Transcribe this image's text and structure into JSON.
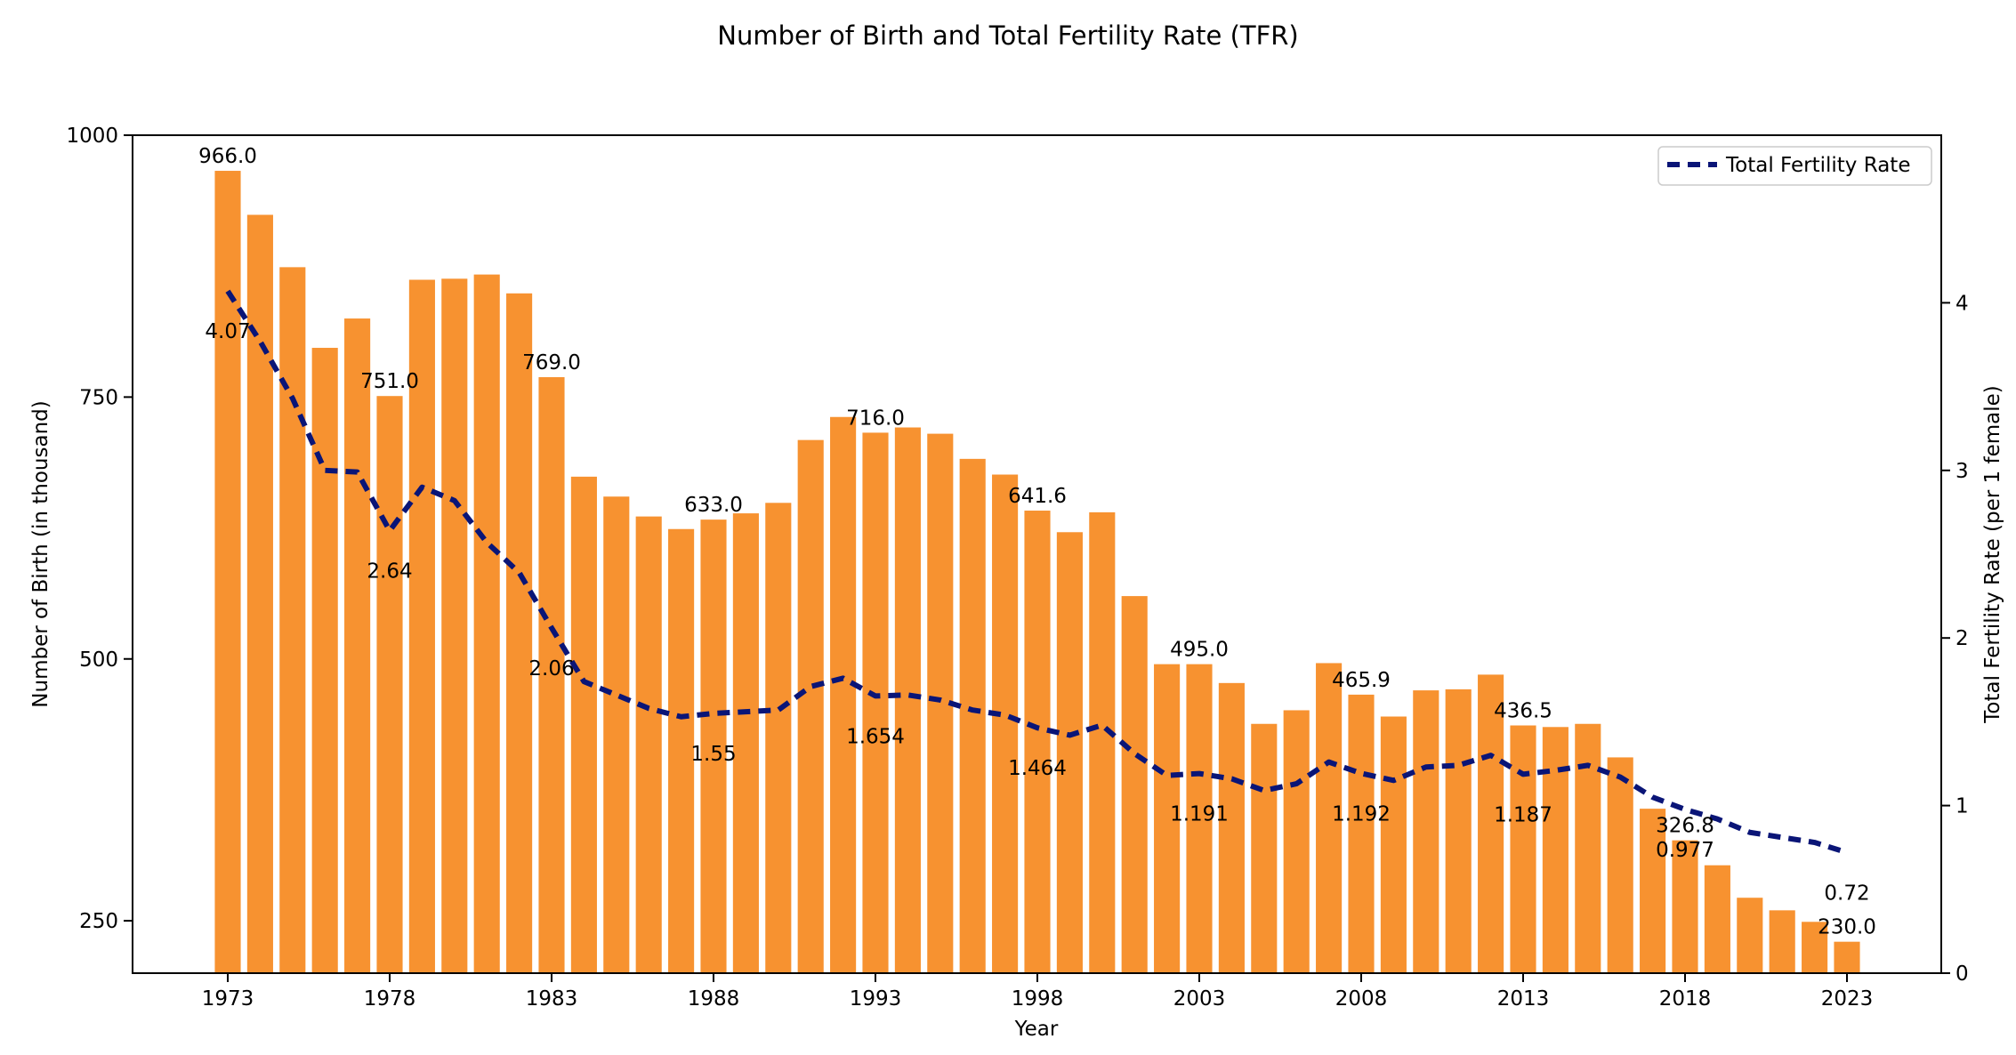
{
  "colors": {
    "bars": "#f79230",
    "line": "#0a1577",
    "axes": "#000000",
    "background": "#ffffff"
  },
  "chart_data": {
    "type": "bar",
    "title": "Number of Birth and Total Fertility Rate (TFR)",
    "xlabel": "Year",
    "ylabel": "Number of Birth (in thousand)",
    "ylabel_right": "Total Fertility Rate (per 1 female)",
    "ylim": [
      200,
      1000
    ],
    "ylim_right": [
      0,
      5
    ],
    "yticks": [
      250,
      500,
      750,
      1000
    ],
    "yticks_right": [
      0,
      1,
      2,
      3,
      4
    ],
    "xticks": [
      1973,
      1978,
      1983,
      1988,
      1993,
      1998,
      2003,
      2008,
      2013,
      2018,
      2023
    ],
    "grid": false,
    "legend": {
      "position": "top-right",
      "entries": [
        "Total Fertility Rate"
      ]
    },
    "categories": [
      1973,
      1974,
      1975,
      1976,
      1977,
      1978,
      1979,
      1980,
      1981,
      1982,
      1983,
      1984,
      1985,
      1986,
      1987,
      1988,
      1989,
      1990,
      1991,
      1992,
      1993,
      1994,
      1995,
      1996,
      1997,
      1998,
      1999,
      2000,
      2001,
      2002,
      2003,
      2004,
      2005,
      2006,
      2007,
      2008,
      2009,
      2010,
      2011,
      2012,
      2013,
      2014,
      2015,
      2016,
      2017,
      2018,
      2019,
      2020,
      2021,
      2022,
      2023
    ],
    "series": [
      {
        "name": "Number of Birth",
        "type": "bar",
        "axis": "left",
        "values": [
          966.0,
          924,
          874,
          797,
          825,
          751.0,
          862,
          863,
          867,
          849,
          769.0,
          674,
          655,
          636,
          624,
          633.0,
          639,
          649,
          709,
          731,
          716.0,
          721,
          715,
          691,
          676,
          641.6,
          621,
          640,
          560,
          495,
          495.0,
          477,
          438,
          451,
          496,
          465.9,
          445,
          470,
          471,
          485,
          436.5,
          435,
          438,
          406,
          357,
          326.8,
          303,
          272,
          260,
          249,
          230.0
        ]
      },
      {
        "name": "Total Fertility Rate",
        "type": "line",
        "axis": "right",
        "values": [
          4.07,
          3.77,
          3.43,
          3.0,
          2.99,
          2.64,
          2.9,
          2.82,
          2.57,
          2.39,
          2.06,
          1.74,
          1.66,
          1.58,
          1.53,
          1.55,
          1.56,
          1.57,
          1.71,
          1.76,
          1.654,
          1.66,
          1.63,
          1.57,
          1.54,
          1.464,
          1.42,
          1.48,
          1.31,
          1.18,
          1.191,
          1.16,
          1.09,
          1.13,
          1.26,
          1.192,
          1.15,
          1.23,
          1.24,
          1.3,
          1.187,
          1.21,
          1.24,
          1.17,
          1.05,
          0.977,
          0.92,
          0.84,
          0.81,
          0.78,
          0.72
        ]
      }
    ],
    "bar_labels": [
      {
        "year": 1973,
        "text": "966.0"
      },
      {
        "year": 1978,
        "text": "751.0"
      },
      {
        "year": 1983,
        "text": "769.0"
      },
      {
        "year": 1988,
        "text": "633.0"
      },
      {
        "year": 1993,
        "text": "716.0"
      },
      {
        "year": 1998,
        "text": "641.6"
      },
      {
        "year": 2003,
        "text": "495.0"
      },
      {
        "year": 2008,
        "text": "465.9"
      },
      {
        "year": 2013,
        "text": "436.5"
      },
      {
        "year": 2018,
        "text": "326.8"
      },
      {
        "year": 2023,
        "text": "230.0"
      }
    ],
    "line_labels": [
      {
        "year": 1973,
        "text": "4.07"
      },
      {
        "year": 1978,
        "text": "2.64"
      },
      {
        "year": 1983,
        "text": "2.06"
      },
      {
        "year": 1988,
        "text": "1.55"
      },
      {
        "year": 1993,
        "text": "1.654"
      },
      {
        "year": 1998,
        "text": "1.464"
      },
      {
        "year": 2003,
        "text": "1.191"
      },
      {
        "year": 2008,
        "text": "1.192"
      },
      {
        "year": 2013,
        "text": "1.187"
      },
      {
        "year": 2018,
        "text": "0.977"
      },
      {
        "year": 2023,
        "text": "0.72"
      }
    ]
  }
}
